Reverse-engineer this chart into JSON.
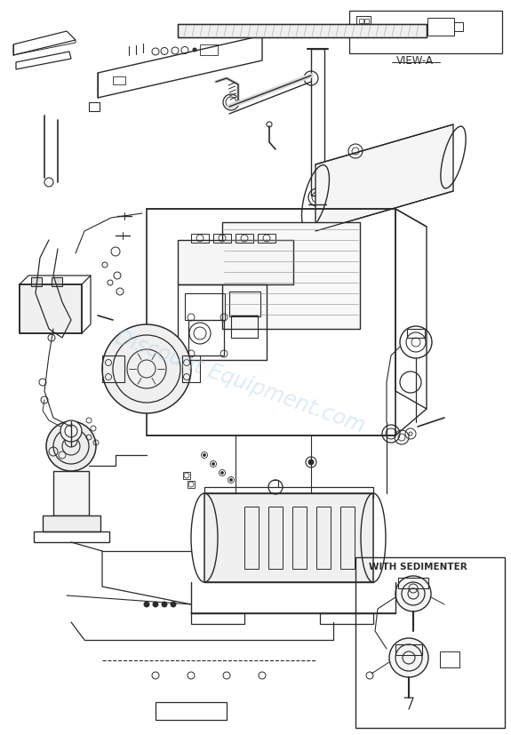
{
  "bg_color": "#ffffff",
  "line_color": "#2a2a2a",
  "watermark_text": "Discount Equipment.com",
  "watermark_color": "#aaccdd",
  "watermark_alpha": 0.38,
  "view_a_label": "VIEW-A",
  "sedimenter_label": "WITH SEDIMENTER",
  "fig_width": 5.75,
  "fig_height": 8.27,
  "dpi": 100
}
